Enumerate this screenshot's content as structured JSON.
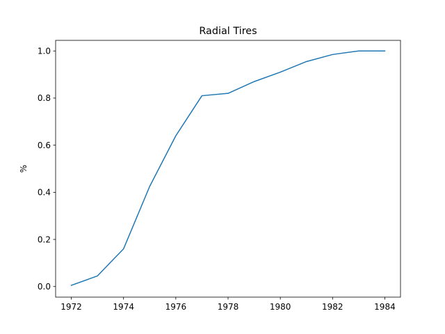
{
  "chart_data": {
    "type": "line",
    "title": "Radial Tires",
    "xlabel": "",
    "ylabel": "%",
    "xlim": [
      1971.4,
      1984.6
    ],
    "ylim": [
      -0.045,
      1.045
    ],
    "xticks": [
      1972,
      1974,
      1976,
      1978,
      1980,
      1982,
      1984
    ],
    "yticks": [
      0.0,
      0.2,
      0.4,
      0.6,
      0.8,
      1.0
    ],
    "xtick_labels": [
      "1972",
      "1974",
      "1976",
      "1978",
      "1980",
      "1982",
      "1984"
    ],
    "ytick_labels": [
      "0.0",
      "0.2",
      "0.4",
      "0.6",
      "0.8",
      "1.0"
    ],
    "grid": false,
    "series": [
      {
        "color": "#1f77b4",
        "x": [
          1972,
          1973,
          1974,
          1975,
          1976,
          1977,
          1978,
          1979,
          1980,
          1981,
          1982,
          1983,
          1984
        ],
        "y": [
          0.005,
          0.045,
          0.16,
          0.425,
          0.64,
          0.81,
          0.82,
          0.87,
          0.91,
          0.955,
          0.985,
          1.0,
          1.0
        ]
      }
    ]
  }
}
